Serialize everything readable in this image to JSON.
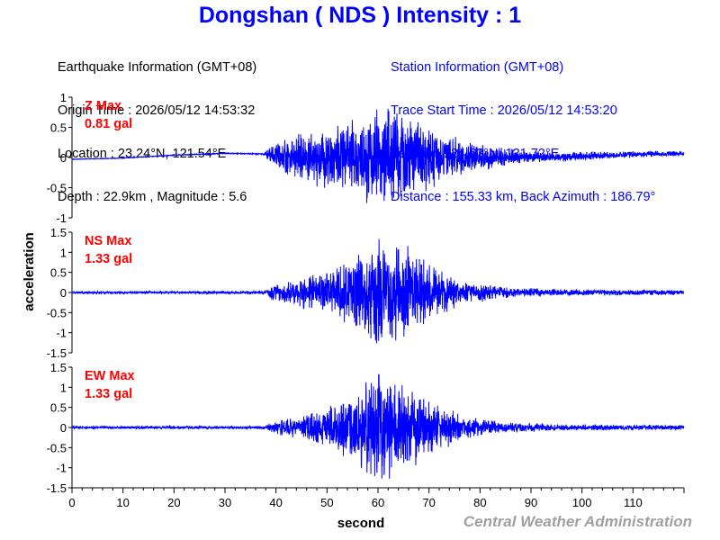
{
  "header": {
    "title": "Dongshan ( NDS ) Intensity : 1"
  },
  "earthquake_info": {
    "heading": "Earthquake Information (GMT+08)",
    "origin_time": "Origin Time : 2026/05/12 14:53:32",
    "location": "Location : 23.24°N, 121.54°E",
    "depth_magnitude": "Depth : 22.9km , Magnitude : 5.6"
  },
  "station_info": {
    "heading": "Station Information (GMT+08)",
    "trace_start": "Trace Start Time : 2026/05/12 14:53:20",
    "location": "Location : 24.63°N, 121.72°E",
    "distance_azimuth": "Distance : 155.33 km, Back Azimuth : 186.79°"
  },
  "footer": {
    "credit": "Central Weather Administration"
  },
  "colors": {
    "trace": "#0000ff",
    "label": "#ff0000",
    "title": "#0000ff",
    "credit": "#a0a0a0"
  },
  "chart_data": {
    "type": "line",
    "xlabel": "second",
    "ylabel": "acceleration",
    "x_range": [
      0,
      120
    ],
    "x_ticks": [
      "0",
      "10",
      "20",
      "30",
      "40",
      "50",
      "60",
      "70",
      "80",
      "90",
      "100",
      "110"
    ],
    "grid": false,
    "panels": [
      {
        "name": "Z",
        "label": "Z Max",
        "max_text": "0.81 gal",
        "peak": 0.81,
        "ylim": [
          -1,
          1
        ],
        "y_ticks": [
          "1",
          "0.5",
          "0",
          "-0.5",
          "-1"
        ],
        "envelope": [
          [
            0,
            0.003
          ],
          [
            37.5,
            0.006
          ],
          [
            38.5,
            0.08
          ],
          [
            42,
            0.22
          ],
          [
            50,
            0.35
          ],
          [
            58,
            0.5
          ],
          [
            62,
            0.62
          ],
          [
            66,
            0.5
          ],
          [
            72,
            0.3
          ],
          [
            80,
            0.15
          ],
          [
            90,
            0.07
          ],
          [
            105,
            0.04
          ],
          [
            120,
            0.03
          ]
        ],
        "drift": [
          [
            0,
            -0.03
          ],
          [
            10,
            -0.01
          ],
          [
            20,
            0.04
          ],
          [
            30,
            0.07
          ],
          [
            37,
            0.06
          ],
          [
            45,
            0.0
          ],
          [
            80,
            0.0
          ],
          [
            95,
            0.01
          ],
          [
            110,
            0.05
          ],
          [
            120,
            0.07
          ]
        ]
      },
      {
        "name": "NS",
        "label": "NS Max",
        "max_text": "1.33 gal",
        "peak": 1.33,
        "ylim": [
          -1.5,
          1.5
        ],
        "y_ticks": [
          "1.5",
          "1",
          "0.5",
          "0",
          "-0.5",
          "-1",
          "-1.5"
        ],
        "envelope": [
          [
            0,
            0.02
          ],
          [
            38,
            0.025
          ],
          [
            39,
            0.12
          ],
          [
            45,
            0.25
          ],
          [
            52,
            0.4
          ],
          [
            57,
            0.7
          ],
          [
            61,
            1.0
          ],
          [
            64,
            0.85
          ],
          [
            70,
            0.5
          ],
          [
            76,
            0.2
          ],
          [
            85,
            0.09
          ],
          [
            100,
            0.05
          ],
          [
            120,
            0.04
          ]
        ],
        "drift": [
          [
            0,
            0
          ],
          [
            120,
            0
          ]
        ]
      },
      {
        "name": "EW",
        "label": "EW Max",
        "max_text": "1.33 gal",
        "peak": 1.33,
        "ylim": [
          -1.5,
          1.5
        ],
        "y_ticks": [
          "1.5",
          "1",
          "0.5",
          "0",
          "-0.5",
          "-1",
          "-1.5"
        ],
        "envelope": [
          [
            0,
            0.02
          ],
          [
            38,
            0.025
          ],
          [
            39,
            0.1
          ],
          [
            44,
            0.18
          ],
          [
            50,
            0.3
          ],
          [
            56,
            0.55
          ],
          [
            60,
            0.95
          ],
          [
            64,
            0.75
          ],
          [
            70,
            0.45
          ],
          [
            77,
            0.18
          ],
          [
            85,
            0.08
          ],
          [
            100,
            0.05
          ],
          [
            120,
            0.04
          ]
        ],
        "drift": [
          [
            0,
            0
          ],
          [
            120,
            0
          ]
        ]
      }
    ]
  }
}
